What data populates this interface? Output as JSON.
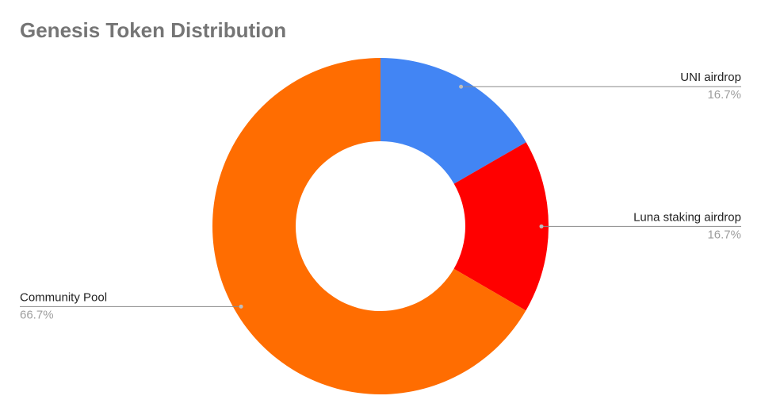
{
  "chart_data": {
    "type": "donut",
    "title": "Genesis Token Distribution",
    "categories": [
      "UNI airdrop",
      "Luna staking airdrop",
      "Community Pool"
    ],
    "values": [
      16.7,
      16.7,
      66.7
    ],
    "value_labels": [
      "16.7%",
      "16.7%",
      "66.7%"
    ],
    "colors": [
      "#4285f4",
      "#ff0000",
      "#ff6d01"
    ]
  }
}
